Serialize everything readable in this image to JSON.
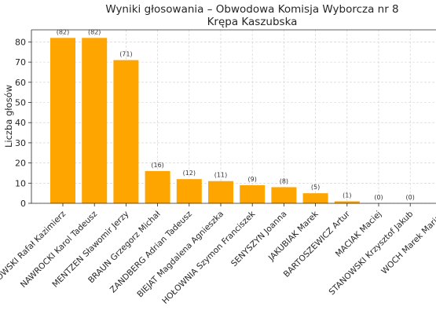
{
  "chart_data": {
    "type": "bar",
    "title": "Wyniki głosowania – Obwodowa Komisja Wyborcza nr 8",
    "subtitle": "Krępa Kaszubska",
    "xlabel": "",
    "ylabel": "Liczba głosów",
    "ylim": [
      0,
      86
    ],
    "yticks": [
      0,
      10,
      20,
      30,
      40,
      50,
      60,
      70,
      80
    ],
    "grid": true,
    "bar_color": "#FFA500",
    "categories": [
      "TRZASKOWSKI Rafał Kazimierz",
      "NAWROCKI Karol Tadeusz",
      "MENTZEN Sławomir Jerzy",
      "BRAUN Grzegorz Michał",
      "ZANDBERG Adrian Tadeusz",
      "BIEJAT Magdalena Agnieszka",
      "HOŁOWNIA Szymon Franciszek",
      "SENYSZYN Joanna",
      "JAKUBIAK Marek",
      "BARTOSZEWICZ Artur",
      "MACIAK Maciej",
      "STANOWSKI Krzysztof Jakub",
      "WOCH Marek Marian"
    ],
    "values": [
      82,
      82,
      71,
      16,
      12,
      11,
      9,
      8,
      5,
      1,
      0,
      0,
      0
    ],
    "data_labels": [
      "(82)",
      "(82)",
      "(71)",
      "(16)",
      "(12)",
      "(11)",
      "(9)",
      "(8)",
      "(5)",
      "(1)",
      "(0)",
      "(0)",
      "(0)"
    ]
  }
}
